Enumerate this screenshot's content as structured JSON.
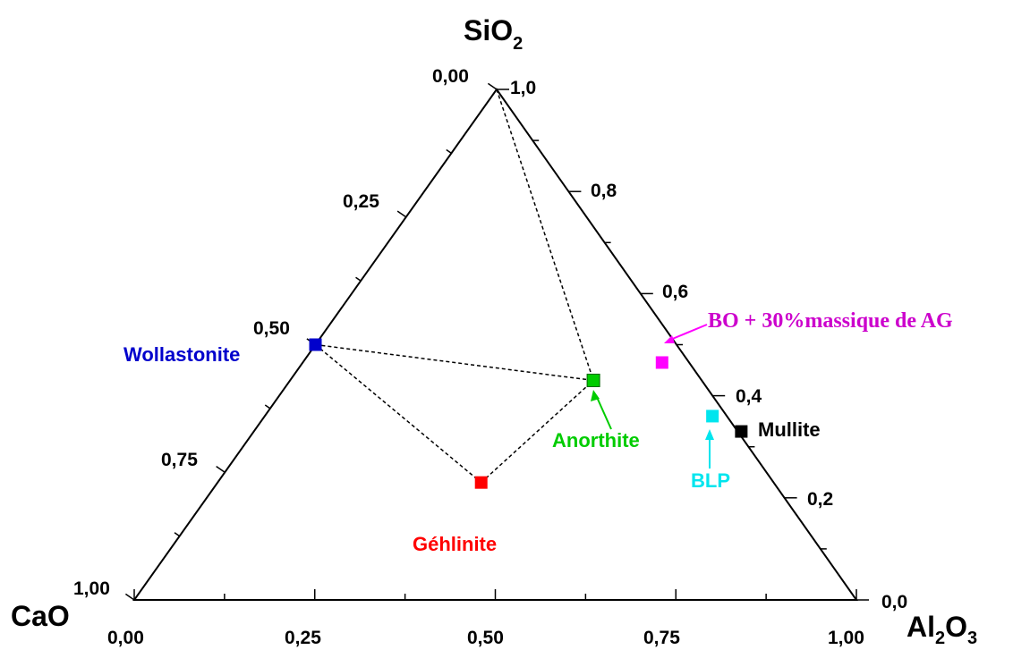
{
  "chart_data": {
    "type": "scatter",
    "subtype": "ternary",
    "vertices": {
      "top": {
        "text": "SiO",
        "sub": "2"
      },
      "left": {
        "text": "CaO"
      },
      "right": {
        "text": "Al",
        "sub1": "2",
        "mid": "O",
        "sub2": "3"
      }
    },
    "bottom_ticks": [
      "0,00",
      "0,25",
      "0,50",
      "0,75",
      "1,00"
    ],
    "left_ticks": [
      "0,00",
      "0,25",
      "0,50",
      "0,75",
      "1,00"
    ],
    "right_ticks": [
      "1,0",
      "0,8",
      "0,6",
      "0,4",
      "0,2",
      "0,0"
    ],
    "points": [
      {
        "name": "Wollastonite",
        "x": 0.25,
        "sio2": 0.5,
        "color": "#0000cc"
      },
      {
        "name": "Anorthite",
        "x": 0.635,
        "sio2": 0.43,
        "color": "#00cc00"
      },
      {
        "name": "Géhlinite",
        "x": 0.48,
        "sio2": 0.23,
        "color": "#ff0000"
      },
      {
        "name": "BO + 30%massique de AG",
        "x": 0.73,
        "sio2": 0.465,
        "color": "#ff00ff"
      },
      {
        "name": "BLP",
        "x": 0.8,
        "sio2": 0.36,
        "color": "#00e5ee"
      },
      {
        "name": "Mullite",
        "x": 0.84,
        "sio2": 0.33,
        "color": "#000000"
      }
    ],
    "tie_lines": [
      [
        "apex",
        "Anorthite"
      ],
      [
        "Wollastonite",
        "Anorthite"
      ],
      [
        "Wollastonite",
        "Géhlinite"
      ],
      [
        "Géhlinite",
        "Anorthite"
      ]
    ]
  }
}
